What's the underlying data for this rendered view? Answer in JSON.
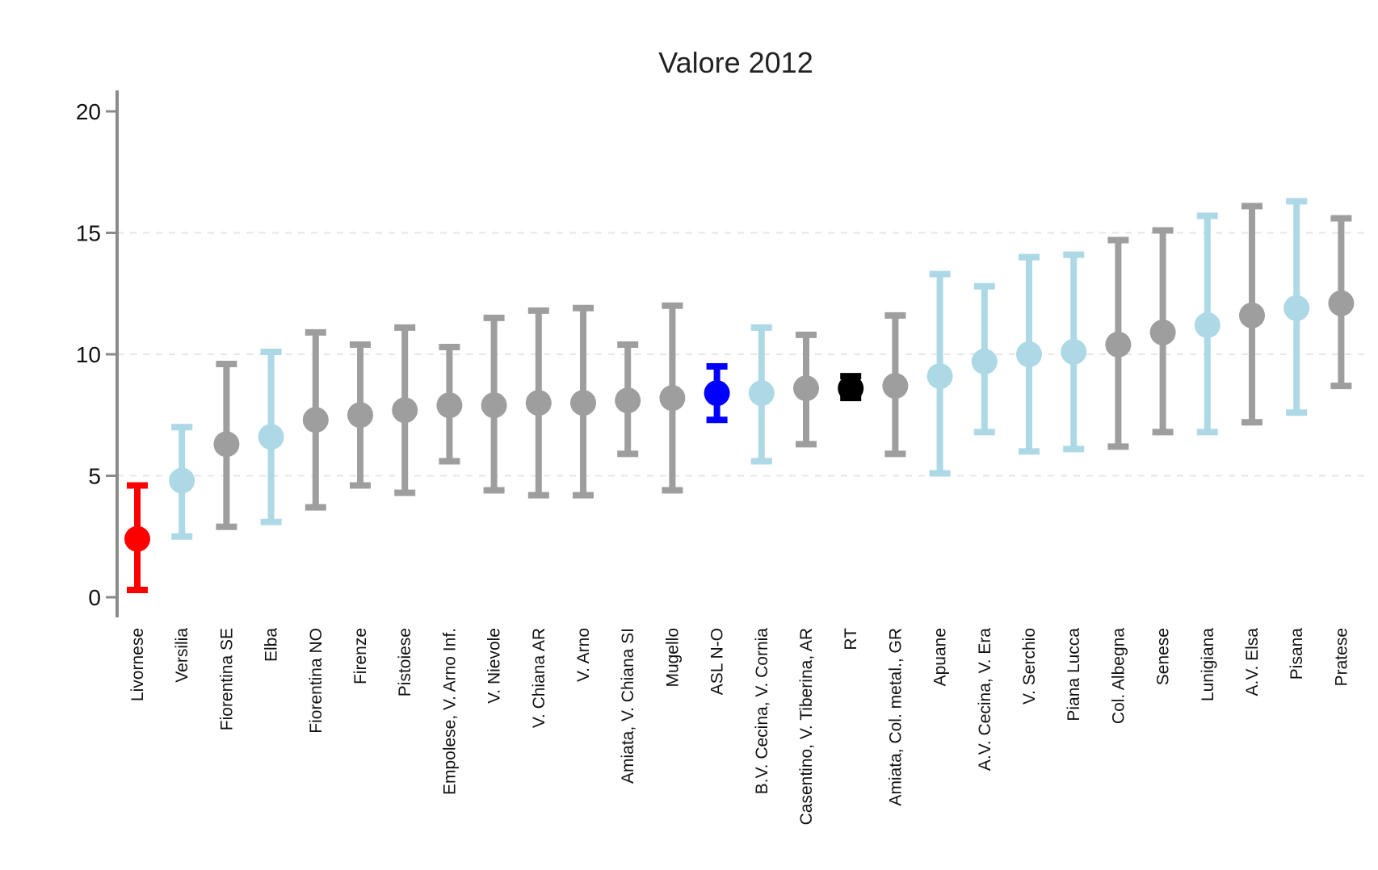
{
  "chart_data": {
    "type": "scatter",
    "title": "Valore 2012",
    "xlabel": "",
    "ylabel": "",
    "ylim": [
      0,
      20
    ],
    "yticks": [
      0,
      5,
      10,
      15,
      20
    ],
    "y_tick_labels": [
      "0",
      "5",
      "10",
      "15",
      "20"
    ],
    "grid": true,
    "legend": "none",
    "categories": [
      "Livornese",
      "Versilia",
      "Fiorentina SE",
      "Elba",
      "Fiorentina NO",
      "Firenze",
      "Pistoiese",
      "Empolese, V. Arno Inf.",
      "V. Nievole",
      "V. Chiana AR",
      "V. Arno",
      "Amiata, V. Chiana SI",
      "Mugello",
      "ASL N-O",
      "B.V. Cecina, V. Cornia",
      "Casentino, V. Tiberina, AR",
      "RT",
      "Amiata, Col. metal., GR",
      "Apuane",
      "A.V. Cecina, V. Era",
      "V. Serchio",
      "Piana Lucca",
      "Col. Albegna",
      "Senese",
      "Lunigiana",
      "A.V. Elsa",
      "Pisana",
      "Pratese"
    ],
    "series": [
      {
        "values": [
          2.4,
          4.8,
          6.3,
          6.6,
          7.3,
          7.5,
          7.7,
          7.9,
          7.9,
          8.0,
          8.0,
          8.1,
          8.2,
          8.4,
          8.4,
          8.6,
          8.6,
          8.7,
          9.1,
          9.7,
          10.0,
          10.1,
          10.4,
          10.9,
          11.2,
          11.6,
          11.9,
          12.1
        ],
        "lower": [
          0.3,
          2.5,
          2.9,
          3.1,
          3.7,
          4.6,
          4.3,
          5.6,
          4.4,
          4.2,
          4.2,
          5.9,
          4.4,
          7.3,
          5.6,
          6.3,
          8.2,
          5.9,
          5.1,
          6.8,
          6.0,
          6.1,
          6.2,
          6.8,
          6.8,
          7.2,
          7.6,
          8.7
        ],
        "upper": [
          4.6,
          7.0,
          9.6,
          10.1,
          10.9,
          10.4,
          11.1,
          10.3,
          11.5,
          11.8,
          11.9,
          10.4,
          12.0,
          9.5,
          11.1,
          10.8,
          9.1,
          11.6,
          13.3,
          12.8,
          14.0,
          14.1,
          14.7,
          15.1,
          15.7,
          16.1,
          16.3,
          15.6
        ]
      }
    ],
    "point_colors": [
      "#ff0000",
      "#add8e6",
      "#9e9e9e",
      "#add8e6",
      "#9e9e9e",
      "#9e9e9e",
      "#9e9e9e",
      "#9e9e9e",
      "#9e9e9e",
      "#9e9e9e",
      "#9e9e9e",
      "#9e9e9e",
      "#9e9e9e",
      "#0000ff",
      "#add8e6",
      "#9e9e9e",
      "#000000",
      "#9e9e9e",
      "#add8e6",
      "#add8e6",
      "#add8e6",
      "#add8e6",
      "#9e9e9e",
      "#9e9e9e",
      "#add8e6",
      "#9e9e9e",
      "#add8e6",
      "#9e9e9e"
    ],
    "axis_color": "#8a8a8a",
    "grid_color": "#e6e6e6"
  }
}
